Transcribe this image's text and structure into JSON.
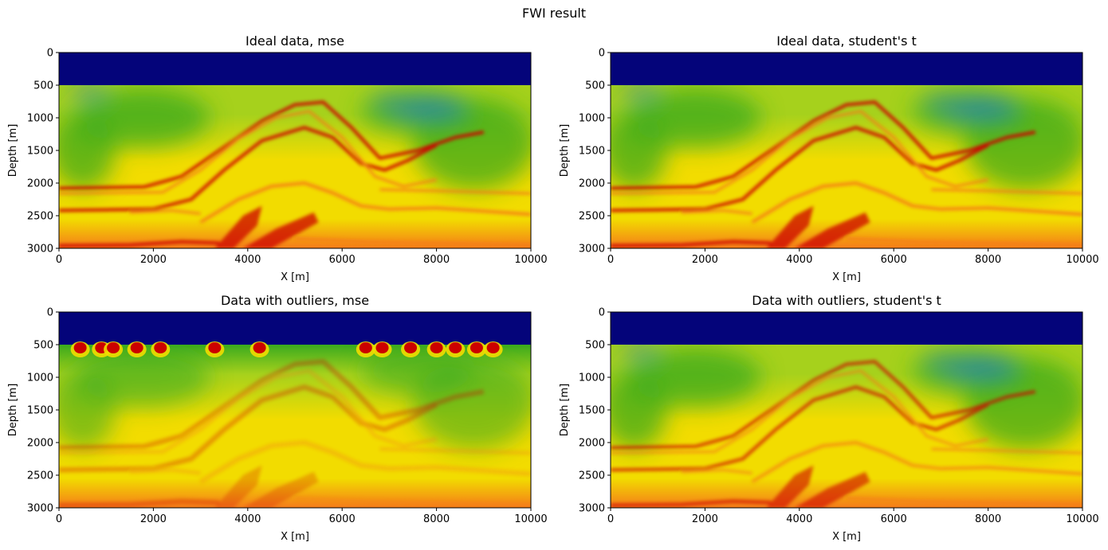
{
  "figure": {
    "suptitle": "FWI result"
  },
  "colors": {
    "water": "#04047a",
    "low_velocity": "#1a6fc8",
    "mid_low": "#3aaa1e",
    "mid": "#a6d11c",
    "mid_high": "#f2dc00",
    "high": "#f57b1a",
    "very_high": "#cc0000"
  },
  "chart_data": [
    {
      "type": "heatmap",
      "title": "Ideal data, mse",
      "xlabel": "X [m]",
      "ylabel": "Depth [m]",
      "xlim": [
        0,
        10000
      ],
      "ylim": [
        3000,
        0
      ],
      "xticks": [
        0,
        2000,
        4000,
        6000,
        8000,
        10000
      ],
      "yticks": [
        0,
        500,
        1000,
        1500,
        2000,
        2500,
        3000
      ],
      "water_depth": 500,
      "outliers": false,
      "legend": false,
      "grid": false
    },
    {
      "type": "heatmap",
      "title": "Ideal data, student's t",
      "xlabel": "X [m]",
      "ylabel": "Depth [m]",
      "xlim": [
        0,
        10000
      ],
      "ylim": [
        3000,
        0
      ],
      "xticks": [
        0,
        2000,
        4000,
        6000,
        8000,
        10000
      ],
      "yticks": [
        0,
        500,
        1000,
        1500,
        2000,
        2500,
        3000
      ],
      "water_depth": 500,
      "outliers": false,
      "legend": false,
      "grid": false
    },
    {
      "type": "heatmap",
      "title": "Data with outliers, mse",
      "xlabel": "X [m]",
      "ylabel": "Depth [m]",
      "xlim": [
        0,
        10000
      ],
      "ylim": [
        3000,
        0
      ],
      "xticks": [
        0,
        2000,
        4000,
        6000,
        8000,
        10000
      ],
      "yticks": [
        0,
        500,
        1000,
        1500,
        2000,
        2500,
        3000
      ],
      "water_depth": 500,
      "outliers": true,
      "outlier_x": [
        450,
        900,
        1150,
        1650,
        2150,
        3300,
        4250,
        6500,
        6850,
        7450,
        8000,
        8400,
        8850,
        9200
      ],
      "legend": false,
      "grid": false
    },
    {
      "type": "heatmap",
      "title": "Data with outliers, student's t",
      "xlabel": "X [m]",
      "ylabel": "Depth [m]",
      "xlim": [
        0,
        10000
      ],
      "ylim": [
        3000,
        0
      ],
      "xticks": [
        0,
        2000,
        4000,
        6000,
        8000,
        10000
      ],
      "yticks": [
        0,
        500,
        1000,
        1500,
        2000,
        2500,
        3000
      ],
      "water_depth": 500,
      "outliers": false,
      "legend": false,
      "grid": false
    }
  ]
}
